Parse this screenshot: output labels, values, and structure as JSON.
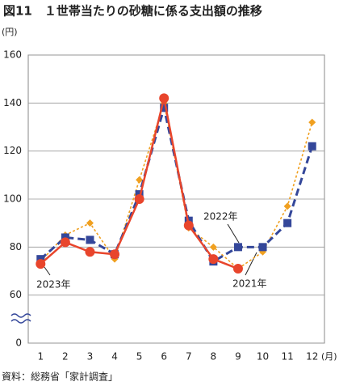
{
  "chart_data": {
    "type": "line",
    "title": "図11　１世帯当たりの砂糖に係る支出額の推移",
    "y_unit": "(円)",
    "x_unit": "(月)",
    "source": "資料：総務省「家計調査」",
    "categories": [
      "1",
      "2",
      "3",
      "4",
      "5",
      "6",
      "7",
      "8",
      "9",
      "10",
      "11",
      "12"
    ],
    "series": [
      {
        "name": "2021年",
        "color": "#f0a020",
        "marker": "diamond",
        "line": "dotted",
        "values": [
          74,
          85,
          90,
          75,
          108,
          140,
          88,
          80,
          71,
          78,
          97,
          132
        ]
      },
      {
        "name": "2022年",
        "color": "#34479a",
        "marker": "square",
        "line": "dashed",
        "values": [
          75,
          84,
          83,
          77,
          102,
          138,
          91,
          74,
          80,
          80,
          90,
          122
        ]
      },
      {
        "name": "2023年",
        "color": "#e8452c",
        "marker": "circle",
        "line": "solid",
        "values": [
          73,
          82,
          78,
          77,
          100,
          142,
          89,
          75,
          71,
          null,
          null,
          null
        ]
      }
    ],
    "ylim": [
      0,
      160
    ],
    "yticks": [
      0,
      60,
      80,
      100,
      120,
      140,
      160
    ],
    "axis_break": [
      0,
      60
    ],
    "grid": true
  }
}
